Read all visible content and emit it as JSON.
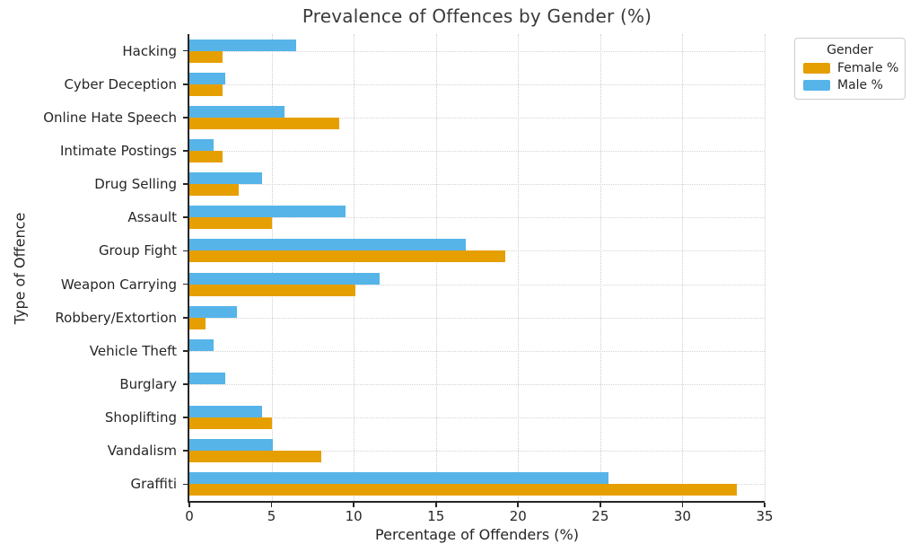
{
  "title": "Prevalence of Offences by Gender (%)",
  "xlabel": "Percentage of Offenders (%)",
  "ylabel": "Type of Offence",
  "legend": {
    "title": "Gender",
    "entries": [
      {
        "label": "Female %",
        "color": "#E69F00"
      },
      {
        "label": "Male %",
        "color": "#56B4E9"
      }
    ]
  },
  "colors": {
    "female": "#E69F00",
    "male": "#56B4E9",
    "axis": "#262626",
    "grid": "#cdcdcd",
    "background": "#ffffff"
  },
  "chart_data": {
    "type": "bar",
    "orientation": "horizontal",
    "title": "Prevalence of Offences by Gender (%)",
    "xlabel": "Percentage of Offenders (%)",
    "ylabel": "Type of Offence",
    "categories": [
      "Hacking",
      "Cyber Deception",
      "Online Hate Speech",
      "Intimate Postings",
      "Drug Selling",
      "Assault",
      "Group Fight",
      "Weapon Carrying",
      "Robbery/Extortion",
      "Vehicle Theft",
      "Burglary",
      "Shoplifting",
      "Vandalism",
      "Graffiti"
    ],
    "series": [
      {
        "name": "Female %",
        "color": "#E69F00",
        "values": [
          2.0,
          2.0,
          9.1,
          2.0,
          3.0,
          5.0,
          19.2,
          10.1,
          1.0,
          0.0,
          0.0,
          5.0,
          8.0,
          33.3
        ]
      },
      {
        "name": "Male %",
        "color": "#56B4E9",
        "values": [
          6.5,
          2.2,
          5.8,
          1.5,
          4.4,
          9.5,
          16.8,
          11.6,
          2.9,
          1.5,
          2.2,
          4.4,
          5.1,
          25.5
        ]
      }
    ],
    "xlim": [
      0,
      35
    ],
    "xticks": [
      0,
      5,
      10,
      15,
      20,
      25,
      30,
      35
    ],
    "grid": true,
    "grid_style": "dotted",
    "legend_position": "outside upper right",
    "bar_order_within_group": [
      "Male % (top)",
      "Female % (bottom)"
    ]
  }
}
